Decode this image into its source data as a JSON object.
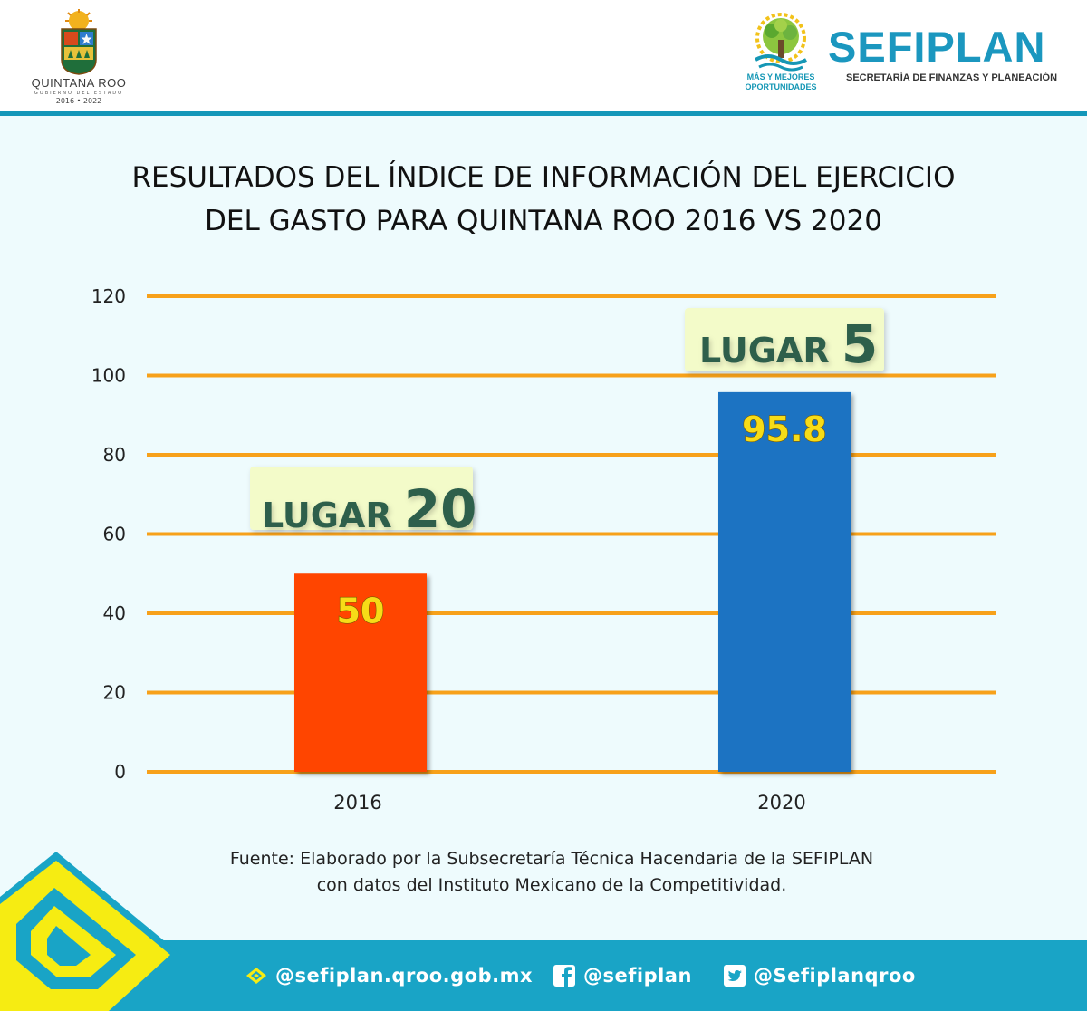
{
  "header": {
    "state_logo": {
      "name": "QUINTANA ROO",
      "subtitle": "GOBIERNO DEL ESTADO",
      "years": "2016 • 2022"
    },
    "slogan": {
      "line1": "MÁS Y MEJORES",
      "line2": "OPORTUNIDADES"
    },
    "agency": {
      "name": "SEFIPLAN",
      "full_name": "SECRETARÍA DE FINANZAS Y PLANEACIÓN"
    }
  },
  "colors": {
    "accent": "#1497b9",
    "panel_background": "#eefbfd",
    "gridline": "#f7a11a",
    "bar_2016": "#ff4500",
    "bar_2020": "#1a73c2",
    "value_label": "#f7dc17",
    "badge_background": "#f3fbc9",
    "badge_text": "#2e5e4b"
  },
  "chart_data": {
    "type": "bar",
    "title_lines": [
      "RESULTADOS DEL ÍNDICE DE INFORMACIÓN DEL EJERCICIO",
      "DEL GASTO PARA QUINTANA ROO 2016 VS 2020"
    ],
    "categories": [
      "2016",
      "2020"
    ],
    "values": [
      50,
      95.8
    ],
    "value_labels": [
      "50",
      "95.8"
    ],
    "annotations": [
      {
        "category": "2016",
        "label": "LUGAR",
        "rank": "20"
      },
      {
        "category": "2020",
        "label": "LUGAR",
        "rank": "5"
      }
    ],
    "ylim": [
      0,
      120
    ],
    "yticks": [
      0,
      20,
      40,
      60,
      80,
      100,
      120
    ],
    "grid": true,
    "xlabel": "",
    "ylabel": ""
  },
  "source": {
    "line1": "Fuente: Elaborado por la Subsecretaría Técnica Hacendaria de la SEFIPLAN",
    "line2": "con datos del Instituto Mexicano de la Competitividad."
  },
  "footer": {
    "website": "@sefiplan.qroo.gob.mx",
    "facebook": "@sefiplan",
    "twitter": "@Sefiplanqroo",
    "icons": [
      "web-logo-icon",
      "facebook-icon",
      "twitter-icon"
    ]
  }
}
